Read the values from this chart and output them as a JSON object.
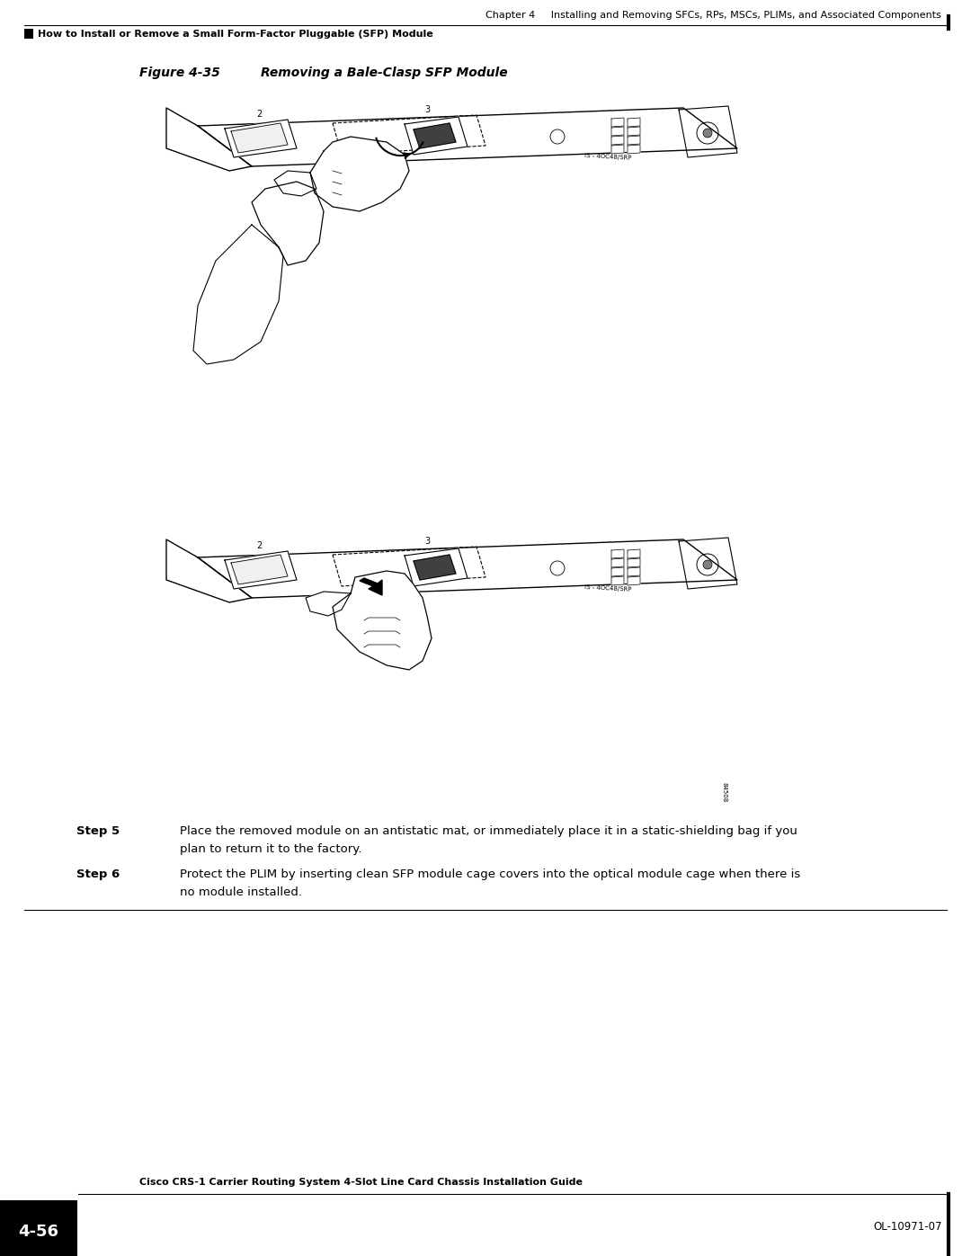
{
  "page_width": 10.8,
  "page_height": 13.97,
  "dpi": 100,
  "background_color": "#ffffff",
  "header_chapter_text": "Chapter 4     Installing and Removing SFCs, RPs, MSCs, PLIMs, and Associated Components",
  "header_chapter_fontsize": 8.0,
  "header_sub_text": "How to Install or Remove a Small Form-Factor Pluggable (SFP) Module",
  "header_sub_fontsize": 8.0,
  "figure_label": "Figure 4-35",
  "figure_desc": "Removing a Bale-Clasp SFP Module",
  "figure_fontsize": 10,
  "step5_label": "Step 5",
  "step5_text1": "Place the removed module on an antistatic mat, or immediately place it in a static-shielding bag if you",
  "step5_text2": "plan to return it to the factory.",
  "step6_label": "Step 6",
  "step6_text1": "Protect the PLIM by inserting clean SFP module cage covers into the optical module cage when there is",
  "step6_text2": "no module installed.",
  "step_fontsize": 9.5,
  "footer_guide_text": "Cisco CRS-1 Carrier Routing System 4-Slot Line Card Chassis Installation Guide",
  "footer_guide_fontsize": 8.0,
  "footer_page_text": "4-56",
  "footer_ol_text": "OL-10971-07",
  "footer_ol_fontsize": 8.5,
  "black": "#000000",
  "white": "#ffffff"
}
